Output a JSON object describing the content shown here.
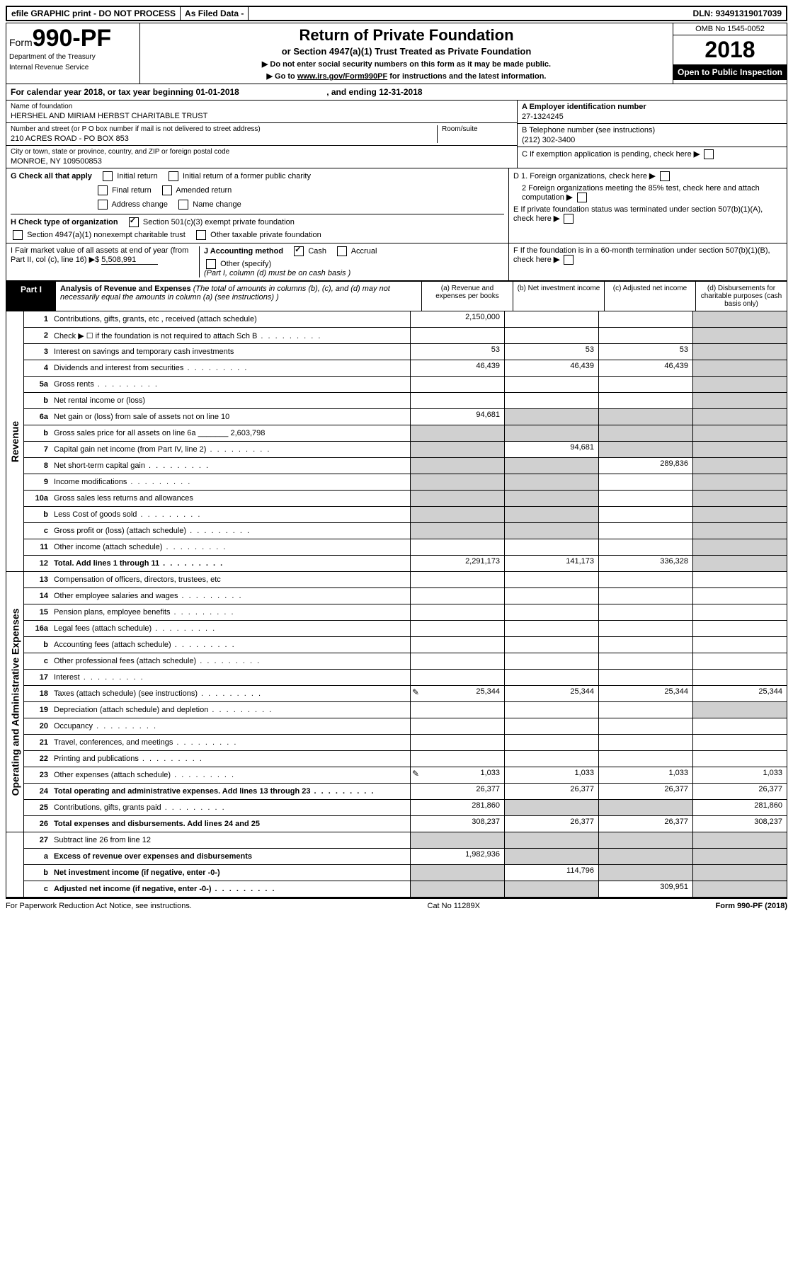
{
  "topbar": {
    "efile": "efile GRAPHIC print - DO NOT PROCESS",
    "asfiled": "As Filed Data -",
    "dln_label": "DLN:",
    "dln": "93491319017039"
  },
  "header": {
    "form_prefix": "Form",
    "form_number": "990-PF",
    "dept1": "Department of the Treasury",
    "dept2": "Internal Revenue Service",
    "title": "Return of Private Foundation",
    "subtitle": "or Section 4947(a)(1) Trust Treated as Private Foundation",
    "note1": "▶ Do not enter social security numbers on this form as it may be made public.",
    "note2_pre": "▶ Go to ",
    "note2_link": "www.irs.gov/Form990PF",
    "note2_post": " for instructions and the latest information.",
    "omb": "OMB No 1545-0052",
    "year": "2018",
    "inspection": "Open to Public Inspection"
  },
  "calyear": {
    "text_pre": "For calendar year 2018, or tax year beginning ",
    "begin": "01-01-2018",
    "text_mid": ", and ending ",
    "end": "12-31-2018"
  },
  "info": {
    "name_label": "Name of foundation",
    "name": "HERSHEL AND MIRIAM HERBST CHARITABLE TRUST",
    "addr_label": "Number and street (or P O box number if mail is not delivered to street address)",
    "addr": "210 ACRES ROAD - PO BOX 853",
    "room_label": "Room/suite",
    "city_label": "City or town, state or province, country, and ZIP or foreign postal code",
    "city": "MONROE, NY 109500853",
    "a_label": "A Employer identification number",
    "a_val": "27-1324245",
    "b_label": "B Telephone number (see instructions)",
    "b_val": "(212) 302-3400",
    "c_label": "C If exemption application is pending, check here",
    "d1": "D 1. Foreign organizations, check here",
    "d2": "2 Foreign organizations meeting the 85% test, check here and attach computation",
    "e": "E If private foundation status was terminated under section 507(b)(1)(A), check here",
    "f": "F If the foundation is in a 60-month termination under section 507(b)(1)(B), check here"
  },
  "checks": {
    "g_label": "G Check all that apply",
    "g_opts": [
      "Initial return",
      "Initial return of a former public charity",
      "Final return",
      "Amended return",
      "Address change",
      "Name change"
    ],
    "h_label": "H Check type of organization",
    "h_501c3": "Section 501(c)(3) exempt private foundation",
    "h_4947": "Section 4947(a)(1) nonexempt charitable trust",
    "h_other": "Other taxable private foundation",
    "i_label": "I Fair market value of all assets at end of year (from Part II, col (c), line 16) ▶$",
    "i_val": "5,508,991",
    "j_label": "J Accounting method",
    "j_cash": "Cash",
    "j_accrual": "Accrual",
    "j_other": "Other (specify)",
    "j_note": "(Part I, column (d) must be on cash basis )"
  },
  "part1": {
    "label": "Part I",
    "title": "Analysis of Revenue and Expenses",
    "desc": "(The total of amounts in columns (b), (c), and (d) may not necessarily equal the amounts in column (a) (see instructions) )",
    "col_a": "(a) Revenue and expenses per books",
    "col_b": "(b) Net investment income",
    "col_c": "(c) Adjusted net income",
    "col_d": "(d) Disbursements for charitable purposes (cash basis only)"
  },
  "sections": {
    "revenue": "Revenue",
    "expenses": "Operating and Administrative Expenses"
  },
  "rows": [
    {
      "n": "1",
      "label": "Contributions, gifts, grants, etc , received (attach schedule)",
      "a": "2,150,000",
      "b": "",
      "c": "",
      "d": "",
      "d_shaded": true
    },
    {
      "n": "2",
      "label": "Check ▶ ☐ if the foundation is not required to attach Sch B",
      "a": "",
      "b": "",
      "c": "",
      "d": "",
      "d_shaded": true,
      "noamt": true,
      "dots": true
    },
    {
      "n": "3",
      "label": "Interest on savings and temporary cash investments",
      "a": "53",
      "b": "53",
      "c": "53",
      "d": "",
      "d_shaded": true
    },
    {
      "n": "4",
      "label": "Dividends and interest from securities",
      "a": "46,439",
      "b": "46,439",
      "c": "46,439",
      "d": "",
      "d_shaded": true,
      "dots": true
    },
    {
      "n": "5a",
      "label": "Gross rents",
      "a": "",
      "b": "",
      "c": "",
      "d": "",
      "d_shaded": true,
      "dots": true
    },
    {
      "n": "b",
      "label": "Net rental income or (loss)",
      "a": "",
      "b": "",
      "c": "",
      "d": "",
      "d_shaded": true,
      "noamt": true
    },
    {
      "n": "6a",
      "label": "Net gain or (loss) from sale of assets not on line 10",
      "a": "94,681",
      "b": "",
      "c": "",
      "d": "",
      "d_shaded": true,
      "b_shaded": true,
      "c_shaded": true
    },
    {
      "n": "b",
      "label": "Gross sales price for all assets on line 6a _______ 2,603,798",
      "a": "",
      "b": "",
      "c": "",
      "d": "",
      "d_shaded": true,
      "a_shaded": true,
      "b_shaded": true,
      "c_shaded": true,
      "noamt": true
    },
    {
      "n": "7",
      "label": "Capital gain net income (from Part IV, line 2)",
      "a": "",
      "b": "94,681",
      "c": "",
      "d": "",
      "d_shaded": true,
      "a_shaded": true,
      "c_shaded": true,
      "dots": true
    },
    {
      "n": "8",
      "label": "Net short-term capital gain",
      "a": "",
      "b": "",
      "c": "289,836",
      "d": "",
      "d_shaded": true,
      "a_shaded": true,
      "b_shaded": true,
      "dots": true
    },
    {
      "n": "9",
      "label": "Income modifications",
      "a": "",
      "b": "",
      "c": "",
      "d": "",
      "d_shaded": true,
      "a_shaded": true,
      "b_shaded": true,
      "dots": true
    },
    {
      "n": "10a",
      "label": "Gross sales less returns and allowances",
      "a": "",
      "b": "",
      "c": "",
      "d": "",
      "d_shaded": true,
      "a_shaded": true,
      "b_shaded": true,
      "noamt": true
    },
    {
      "n": "b",
      "label": "Less Cost of goods sold",
      "a": "",
      "b": "",
      "c": "",
      "d": "",
      "d_shaded": true,
      "a_shaded": true,
      "b_shaded": true,
      "noamt": true,
      "dots": true
    },
    {
      "n": "c",
      "label": "Gross profit or (loss) (attach schedule)",
      "a": "",
      "b": "",
      "c": "",
      "d": "",
      "d_shaded": true,
      "a_shaded": true,
      "b_shaded": true,
      "dots": true
    },
    {
      "n": "11",
      "label": "Other income (attach schedule)",
      "a": "",
      "b": "",
      "c": "",
      "d": "",
      "d_shaded": true,
      "dots": true
    },
    {
      "n": "12",
      "label": "Total. Add lines 1 through 11",
      "a": "2,291,173",
      "b": "141,173",
      "c": "336,328",
      "d": "",
      "d_shaded": true,
      "bold": true,
      "dots": true
    }
  ],
  "exp_rows": [
    {
      "n": "13",
      "label": "Compensation of officers, directors, trustees, etc",
      "a": "",
      "b": "",
      "c": "",
      "d": ""
    },
    {
      "n": "14",
      "label": "Other employee salaries and wages",
      "a": "",
      "b": "",
      "c": "",
      "d": "",
      "dots": true
    },
    {
      "n": "15",
      "label": "Pension plans, employee benefits",
      "a": "",
      "b": "",
      "c": "",
      "d": "",
      "dots": true
    },
    {
      "n": "16a",
      "label": "Legal fees (attach schedule)",
      "a": "",
      "b": "",
      "c": "",
      "d": "",
      "dots": true
    },
    {
      "n": "b",
      "label": "Accounting fees (attach schedule)",
      "a": "",
      "b": "",
      "c": "",
      "d": "",
      "dots": true
    },
    {
      "n": "c",
      "label": "Other professional fees (attach schedule)",
      "a": "",
      "b": "",
      "c": "",
      "d": "",
      "dots": true
    },
    {
      "n": "17",
      "label": "Interest",
      "a": "",
      "b": "",
      "c": "",
      "d": "",
      "dots": true
    },
    {
      "n": "18",
      "label": "Taxes (attach schedule) (see instructions)",
      "a": "25,344",
      "b": "25,344",
      "c": "25,344",
      "d": "25,344",
      "icon": true,
      "dots": true
    },
    {
      "n": "19",
      "label": "Depreciation (attach schedule) and depletion",
      "a": "",
      "b": "",
      "c": "",
      "d": "",
      "d_shaded": true,
      "dots": true
    },
    {
      "n": "20",
      "label": "Occupancy",
      "a": "",
      "b": "",
      "c": "",
      "d": "",
      "dots": true
    },
    {
      "n": "21",
      "label": "Travel, conferences, and meetings",
      "a": "",
      "b": "",
      "c": "",
      "d": "",
      "dots": true
    },
    {
      "n": "22",
      "label": "Printing and publications",
      "a": "",
      "b": "",
      "c": "",
      "d": "",
      "dots": true
    },
    {
      "n": "23",
      "label": "Other expenses (attach schedule)",
      "a": "1,033",
      "b": "1,033",
      "c": "1,033",
      "d": "1,033",
      "icon": true,
      "dots": true
    },
    {
      "n": "24",
      "label": "Total operating and administrative expenses. Add lines 13 through 23",
      "a": "26,377",
      "b": "26,377",
      "c": "26,377",
      "d": "26,377",
      "bold": true,
      "dots": true
    },
    {
      "n": "25",
      "label": "Contributions, gifts, grants paid",
      "a": "281,860",
      "b": "",
      "c": "",
      "d": "281,860",
      "b_shaded": true,
      "c_shaded": true,
      "dots": true
    },
    {
      "n": "26",
      "label": "Total expenses and disbursements. Add lines 24 and 25",
      "a": "308,237",
      "b": "26,377",
      "c": "26,377",
      "d": "308,237",
      "bold": true
    }
  ],
  "bottom_rows": [
    {
      "n": "27",
      "label": "Subtract line 26 from line 12",
      "a": "",
      "b": "",
      "c": "",
      "d": "",
      "a_shaded": true,
      "b_shaded": true,
      "c_shaded": true,
      "d_shaded": true
    },
    {
      "n": "a",
      "label": "Excess of revenue over expenses and disbursements",
      "a": "1,982,936",
      "b": "",
      "c": "",
      "d": "",
      "bold": true,
      "b_shaded": true,
      "c_shaded": true,
      "d_shaded": true
    },
    {
      "n": "b",
      "label": "Net investment income (if negative, enter -0-)",
      "a": "",
      "b": "114,796",
      "c": "",
      "d": "",
      "bold": true,
      "a_shaded": true,
      "c_shaded": true,
      "d_shaded": true
    },
    {
      "n": "c",
      "label": "Adjusted net income (if negative, enter -0-)",
      "a": "",
      "b": "",
      "c": "309,951",
      "d": "",
      "bold": true,
      "a_shaded": true,
      "b_shaded": true,
      "d_shaded": true,
      "dots": true
    }
  ],
  "footer": {
    "left": "For Paperwork Reduction Act Notice, see instructions.",
    "mid": "Cat No 11289X",
    "right": "Form 990-PF (2018)"
  }
}
